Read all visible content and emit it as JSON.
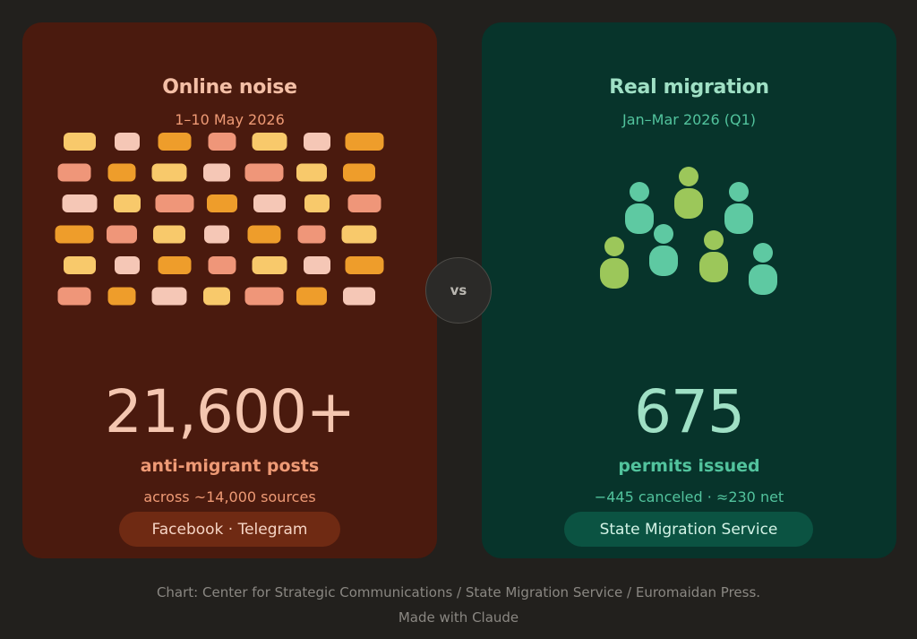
{
  "left_card": {
    "title": "Online noise",
    "subtitle": "1–10 May 2026",
    "big_number": "21,600+",
    "metric_label": "anti-migrant posts",
    "metric_note": "across ~14,000 sources",
    "source": "Facebook · Telegram"
  },
  "divider": {
    "label": "vs"
  },
  "right_card": {
    "title": "Real migration",
    "subtitle": "Jan–Mar 2026 (Q1)",
    "big_number": "675",
    "metric_label": "permits issued",
    "metric_note": "−445 canceled · ≈230 net",
    "source": "State Migration Service"
  },
  "footer": {
    "credit": "Chart: Center for Strategic Communications / State Migration Service / Euromaidan Press.",
    "made_with": "Made with Claude"
  },
  "colors": {
    "background": "#22201d",
    "left_card_bg": "#4a1a0e",
    "right_card_bg": "#07342b",
    "post_tiles": [
      "#ef9679",
      "#f5c7b6",
      "#f8c96b",
      "#ee9d2b"
    ],
    "people_light_green": "#9cc75a",
    "people_teal": "#5ec9a2"
  },
  "chart_data": [
    {
      "type": "pictogram",
      "title": "Online noise",
      "period": "1–10 May 2026",
      "value_label": "21,600+",
      "label": "anti-migrant posts",
      "note": "across ~14,000 sources",
      "source": "Facebook · Telegram",
      "icon": "post-tile-icon",
      "rows": [
        [
          2,
          1,
          3,
          0,
          2,
          1,
          3
        ],
        [
          0,
          3,
          2,
          1,
          0,
          2,
          3
        ],
        [
          1,
          2,
          0,
          3,
          1,
          2,
          0
        ],
        [
          3,
          0,
          2,
          1,
          3,
          0,
          2
        ],
        [
          2,
          1,
          3,
          0,
          2,
          1,
          3
        ],
        [
          0,
          3,
          1,
          2,
          0,
          3,
          1
        ]
      ]
    },
    {
      "type": "pictogram",
      "title": "Real migration",
      "period": "Jan–Mar 2026 (Q1)",
      "value_label": "675",
      "label": "permits issued",
      "note": "−445 canceled · ≈230 net",
      "source": "State Migration Service",
      "icon": "person-icon",
      "people_colors": [
        "light-green",
        "teal",
        "teal",
        "light-green",
        "light-green",
        "teal",
        "teal"
      ]
    }
  ]
}
